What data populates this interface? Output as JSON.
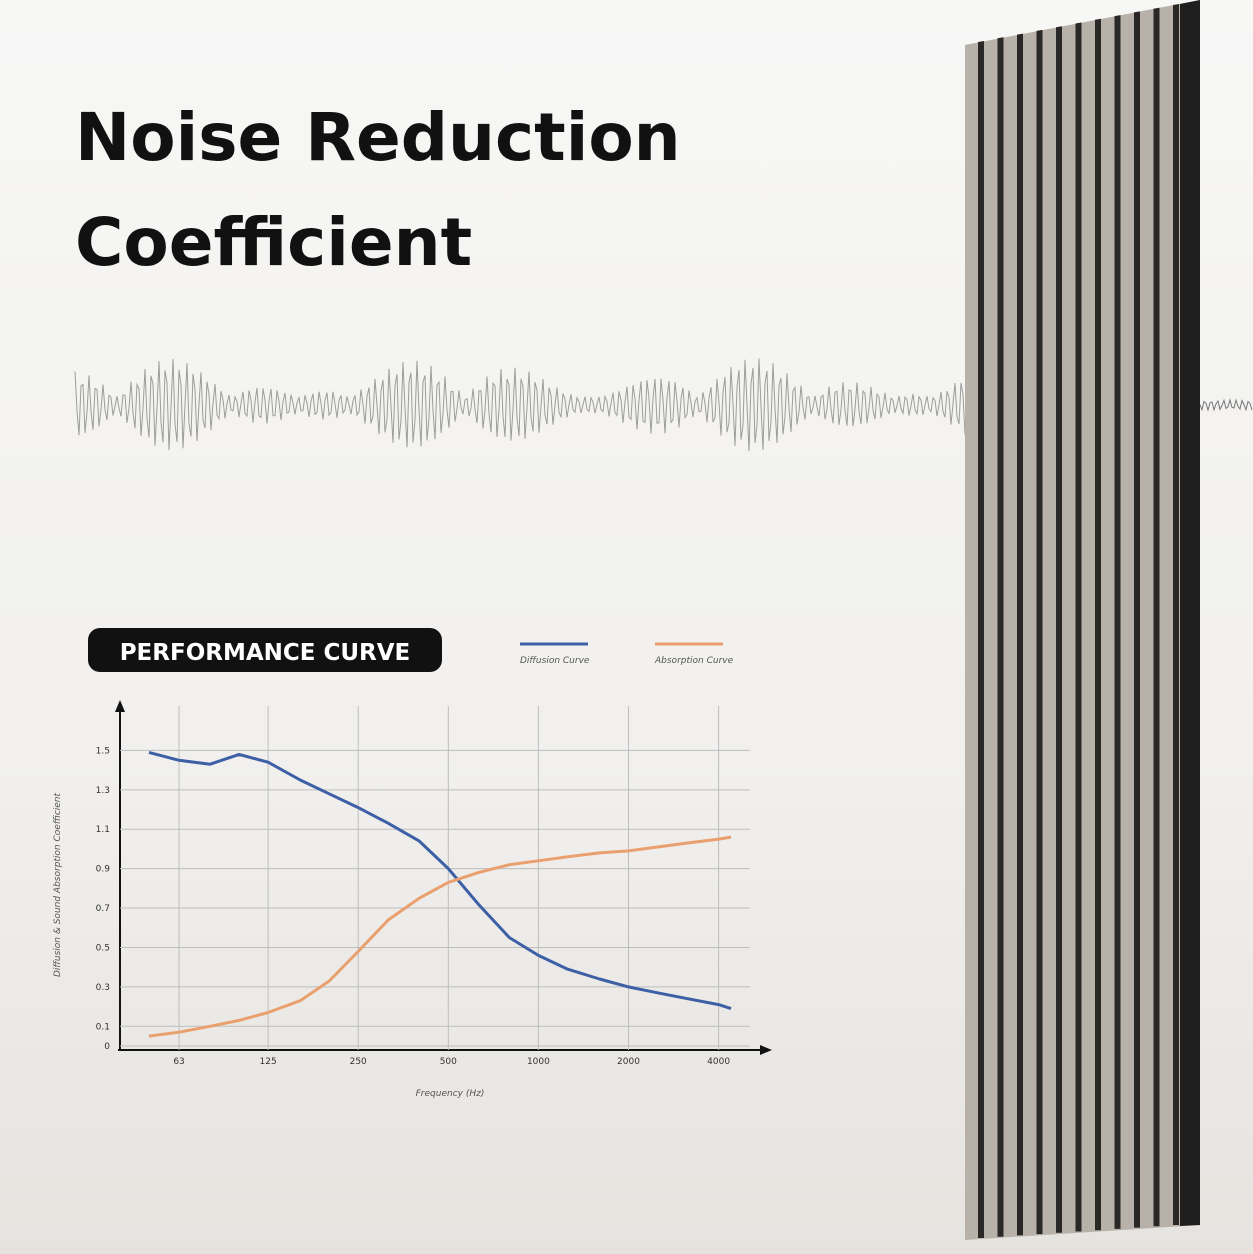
{
  "title": [
    "Noise Reduction",
    "Coefficient"
  ],
  "badge": "PERFORMANCE CURVE",
  "chart_data": {
    "type": "line",
    "x_label": "Frequency (Hz)",
    "y_label": "Diffusion & Sound Absorption Coefficient",
    "x": [
      50,
      63,
      80,
      100,
      125,
      160,
      200,
      250,
      315,
      400,
      500,
      630,
      800,
      1000,
      1250,
      1600,
      2000,
      2500,
      3150,
      4000,
      4400
    ],
    "series": [
      {
        "name": "Diffusion Curve",
        "color": "#3d5fa6",
        "values": [
          1.49,
          1.45,
          1.43,
          1.48,
          1.44,
          1.35,
          1.28,
          1.21,
          1.13,
          1.04,
          0.9,
          0.72,
          0.55,
          0.46,
          0.39,
          0.34,
          0.3,
          0.27,
          0.24,
          0.21,
          0.19
        ]
      },
      {
        "name": "Absorption Curve",
        "color": "#e9a06e",
        "values": [
          0.05,
          0.07,
          0.1,
          0.13,
          0.17,
          0.23,
          0.33,
          0.48,
          0.64,
          0.75,
          0.83,
          0.88,
          0.92,
          0.94,
          0.96,
          0.98,
          0.99,
          1.01,
          1.03,
          1.05,
          1.06
        ]
      }
    ],
    "log_x": true,
    "xlim": [
      40,
      5500
    ],
    "xticks": [
      63,
      125,
      250,
      500,
      1000,
      2000,
      4000
    ],
    "ylim": [
      0,
      1.7
    ],
    "yticks": [
      0,
      0.1,
      0.3,
      0.5,
      0.7,
      0.9,
      1.1,
      1.3,
      1.5
    ],
    "grid": true
  }
}
